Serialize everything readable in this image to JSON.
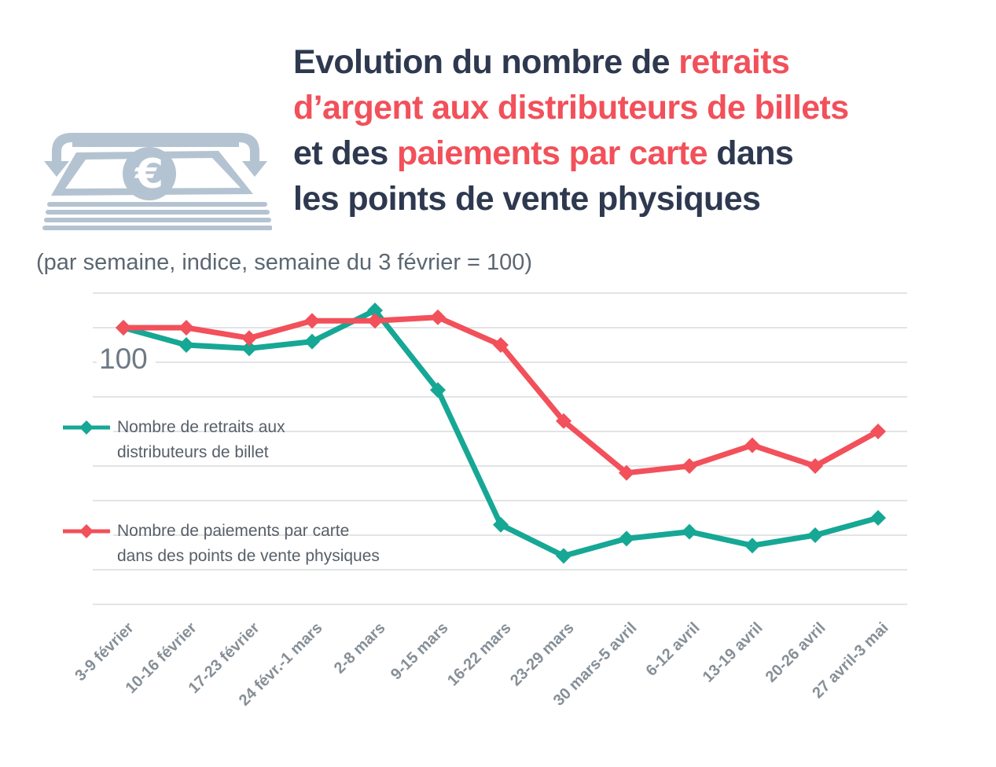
{
  "header": {
    "icon": "banknotes-euro-icon",
    "title": {
      "lines": [
        {
          "segments": [
            {
              "text": "Evolution du nombre de ",
              "color": "navy"
            },
            {
              "text": "retraits",
              "color": "red"
            }
          ]
        },
        {
          "segments": [
            {
              "text": "d’argent aux distributeurs de billets",
              "color": "red"
            }
          ]
        },
        {
          "segments": [
            {
              "text": "et des ",
              "color": "navy"
            },
            {
              "text": "paiements par carte",
              "color": "red"
            },
            {
              "text": " dans",
              "color": "navy"
            }
          ]
        },
        {
          "segments": [
            {
              "text": "les points de vente physiques",
              "color": "navy"
            }
          ]
        }
      ]
    },
    "subtitle": "(par semaine, indice, semaine du 3 février = 100)"
  },
  "colors": {
    "navy": "#2e3950",
    "red": "#f2505a",
    "teal": "#16a795",
    "icon_blue_gray": "#b4c3d1",
    "subtitle_gray": "#5b6772",
    "legend_text_gray": "#565f68",
    "axis_label_gray": "#868f97",
    "gridline_gray": "#e3e4e6",
    "baseline_label_gray": "#6e7984"
  },
  "legend": {
    "items": [
      {
        "label_line1": "Nombre de retraits aux",
        "label_line2": "distributeurs de billet",
        "color": "#16a795"
      },
      {
        "label_line1": "Nombre de paiements par carte",
        "label_line2": "dans des points de vente physiques",
        "color": "#f2505a"
      }
    ]
  },
  "chart_data": {
    "type": "line",
    "title": "Evolution du nombre de retraits d’argent aux distributeurs de billets et des paiements par carte dans les points de vente physiques",
    "subtitle": "(par semaine, indice, semaine du 3 février = 100)",
    "categories": [
      "3-9 février",
      "10-16 février",
      "17-23 février",
      "24 févr.-1 mars",
      "2-8 mars",
      "9-15 mars",
      "16-22 mars",
      "23-29 mars",
      "30 mars-5 avril",
      "6-12 avril",
      "13-19 avril",
      "20-26 avril",
      "27 avril-3 mai"
    ],
    "series": [
      {
        "name": "Nombre de retraits aux distributeurs de billet",
        "color": "#16a795",
        "values": [
          100,
          95,
          94,
          96,
          105,
          82,
          43,
          34,
          39,
          41,
          37,
          40,
          45
        ]
      },
      {
        "name": "Nombre de paiements par carte dans des points de vente physiques",
        "color": "#f2505a",
        "values": [
          100,
          100,
          97,
          102,
          102,
          103,
          95,
          73,
          58,
          60,
          66,
          60,
          70
        ]
      }
    ],
    "baseline": {
      "label": "100",
      "value": 100
    },
    "ylim": [
      20,
      110
    ],
    "grid_step": 10,
    "grid": true,
    "xlabel": "",
    "ylabel": "indice (semaine du 3 février = 100)",
    "legend_position": "inside-left",
    "marker": "diamond"
  }
}
